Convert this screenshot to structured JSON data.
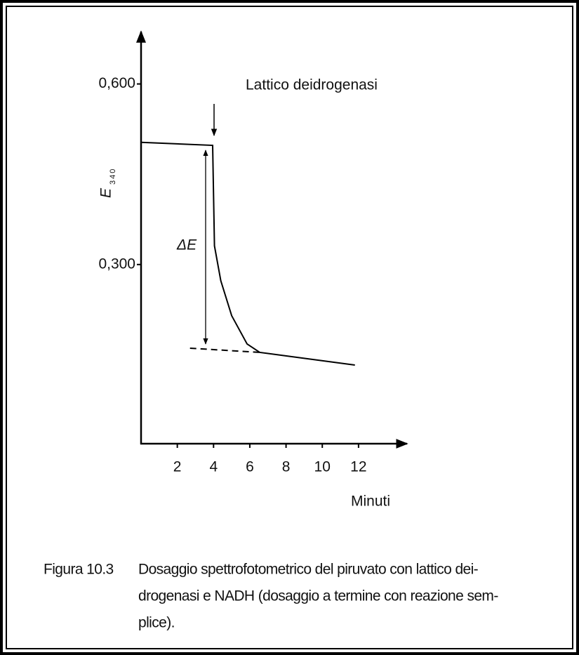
{
  "chart_data": {
    "type": "line",
    "ylabel": "E",
    "ylabel_subscript": "340",
    "xlabel": "Minuti",
    "annotations": [
      "Lattico deidrogenasi",
      "ΔE"
    ],
    "xlim": [
      0,
      14.6
    ],
    "ylim": [
      0,
      0.68
    ],
    "xticks": [
      2,
      4,
      6,
      8,
      10,
      12
    ],
    "yticks": [
      {
        "value": 0.3,
        "label": "0,300"
      },
      {
        "value": 0.6,
        "label": "0,600"
      }
    ],
    "series": [
      {
        "color": "#000000",
        "dashed": false,
        "x": [
          0,
          3.95,
          4.05,
          4.4,
          5.0,
          5.85,
          6.55,
          11.8
        ],
        "values": [
          0.503,
          0.498,
          0.331,
          0.273,
          0.215,
          0.168,
          0.154,
          0.133
        ]
      },
      {
        "color": "#000000",
        "dashed": true,
        "x": [
          2.7,
          6.55
        ],
        "values": [
          0.161,
          0.154
        ]
      }
    ],
    "caption_label": "Figura 10.3",
    "caption_lines": [
      "Dosaggio spettrofotometrico del piruvato con lattico dei-",
      "drogenasi e NADH (dosaggio a termine con reazione sem-",
      "plice)."
    ]
  }
}
